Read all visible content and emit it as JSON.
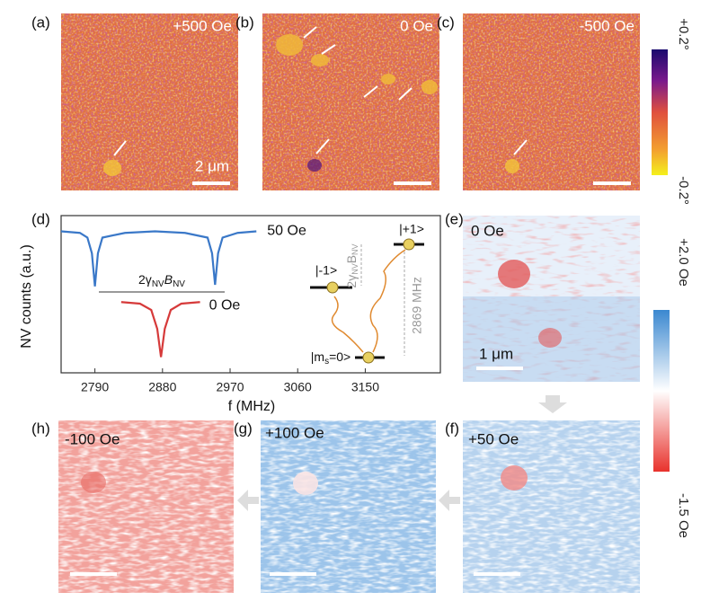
{
  "maps_top": [
    {
      "label": "(a)",
      "field": "+500 Oe",
      "scale": "2 μm"
    },
    {
      "label": "(b)",
      "field": "0 Oe"
    },
    {
      "label": "(c)",
      "field": "-500 Oe"
    }
  ],
  "colorbar_top": {
    "max": "+0.2°",
    "min": "-0.2°"
  },
  "panel_d_label": "(d)",
  "chart_data": {
    "type": "line",
    "xlabel": "f (MHz)",
    "ylabel": "NV counts (a.u.)",
    "xlim": [
      2745,
      3250
    ],
    "ylim": [
      0,
      1
    ],
    "xticks": [
      2790,
      2880,
      2970,
      3060,
      3150
    ],
    "annotation": [
      "2γ",
      "NV",
      "B",
      "NV"
    ],
    "series": [
      {
        "name": "50 Oe",
        "color": "#3a78c8",
        "x": [
          2745,
          2770,
          2780,
          2786,
          2790,
          2794,
          2800,
          2830,
          2870,
          2910,
          2940,
          2946,
          2950,
          2954,
          2960,
          2980,
          3005
        ],
        "values": [
          0.9,
          0.89,
          0.86,
          0.76,
          0.55,
          0.76,
          0.86,
          0.89,
          0.9,
          0.89,
          0.86,
          0.76,
          0.56,
          0.76,
          0.86,
          0.89,
          0.9
        ]
      },
      {
        "name": "0 Oe",
        "color": "#d63a3a",
        "x": [
          2825,
          2850,
          2865,
          2873,
          2878,
          2883,
          2891,
          2905,
          2930
        ],
        "values": [
          0.45,
          0.44,
          0.4,
          0.28,
          0.1,
          0.28,
          0.4,
          0.44,
          0.45
        ]
      }
    ]
  },
  "diagram": {
    "minus1": "|-1>",
    "plus1": "|+1>",
    "ground": [
      "|m",
      "s",
      "=0>"
    ],
    "splitting": "2869 MHz",
    "zeeman": [
      "2γ",
      "NV",
      "B",
      "NV"
    ]
  },
  "maps_bottom": [
    {
      "label": "(e)",
      "field": "0 Oe",
      "scale": "1 μm"
    },
    {
      "label": "(f)",
      "field": "+50 Oe"
    },
    {
      "label": "(g)",
      "field": "+100 Oe"
    },
    {
      "label": "(h)",
      "field": "-100 Oe"
    }
  ],
  "colorbar_bottom": {
    "max": "+2.0 Oe",
    "min": "-1.5 Oe"
  }
}
